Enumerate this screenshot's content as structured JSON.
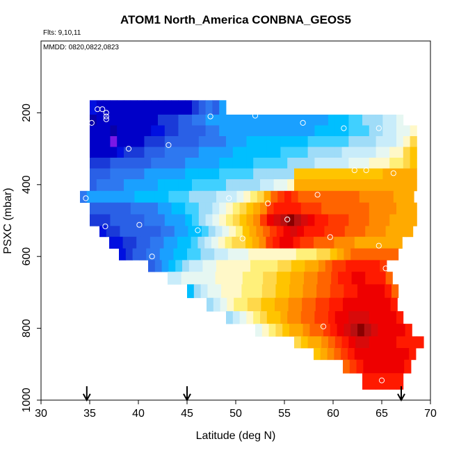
{
  "chart_data": {
    "type": "heatmap",
    "title": "ATOM1 North_America CONBNA_GEOS5",
    "notes": [
      "Flts: 9,10,11",
      "MMDD: 0820,0822,0823"
    ],
    "xlabel": "Latitude (deg N)",
    "ylabel": "PSXC (mbar)",
    "xlim": [
      30,
      70
    ],
    "ylim": [
      1000,
      0
    ],
    "y_inverted": true,
    "xticks": [
      "30",
      "35",
      "40",
      "45",
      "50",
      "55",
      "60",
      "65",
      "70"
    ],
    "yticks": [
      "200",
      "400",
      "600",
      "800",
      "1000"
    ],
    "grid": false,
    "legend": "none",
    "colors": {
      "axis": "#000000",
      "text": "#000000",
      "marker_stroke": "#ffffff",
      "palette": [
        "#7a18e6",
        "#0800a8",
        "#0000c8",
        "#0010e0",
        "#1a3ad8",
        "#2a60e6",
        "#2e78f0",
        "#1aa0ff",
        "#00bfff",
        "#40d0ff",
        "#9fdcf8",
        "#c8ecfa",
        "#e6f7f2",
        "#fff8c8",
        "#fff07a",
        "#ffd84a",
        "#ffc400",
        "#ffaa00",
        "#ff8a00",
        "#ff6400",
        "#ff3a00",
        "#ff1a00",
        "#ee0000",
        "#d80a0a",
        "#b80f10",
        "#8a0000"
      ]
    },
    "rows": [
      {
        "p": 190,
        "x0": 35,
        "vals": [
          3,
          2,
          2,
          2,
          2,
          2,
          2,
          2,
          2,
          2,
          2,
          2,
          2,
          2,
          2,
          4,
          5,
          6,
          5,
          7
        ]
      },
      {
        "p": 220,
        "x0": 35,
        "vals": [
          1,
          2,
          2,
          2,
          2,
          2,
          2,
          2,
          2,
          2,
          4,
          4,
          4,
          5,
          5,
          6,
          6,
          7,
          7,
          7,
          7,
          7,
          7,
          7,
          7,
          7,
          7,
          7,
          7,
          7,
          7,
          7,
          7,
          7,
          7,
          8,
          8,
          8,
          9,
          9,
          10,
          10,
          10,
          11,
          11,
          12
        ]
      },
      {
        "p": 250,
        "x0": 35,
        "vals": [
          2,
          2,
          2,
          1,
          2,
          2,
          2,
          2,
          2,
          3,
          3,
          4,
          4,
          5,
          5,
          5,
          5,
          6,
          6,
          7,
          7,
          7,
          7,
          7,
          7,
          7,
          7,
          7,
          7,
          7,
          7,
          7,
          7,
          8,
          8,
          8,
          8,
          8,
          9,
          9,
          9,
          10,
          10,
          11,
          11,
          12,
          12,
          13
        ]
      },
      {
        "p": 280,
        "x0": 35,
        "vals": [
          2,
          2,
          2,
          0,
          2,
          2,
          2,
          2,
          4,
          4,
          4,
          5,
          5,
          5,
          5,
          5,
          6,
          6,
          6,
          6,
          7,
          7,
          7,
          8,
          8,
          8,
          8,
          8,
          8,
          8,
          8,
          8,
          9,
          9,
          9,
          9,
          9,
          9,
          10,
          10,
          10,
          10,
          11,
          11,
          11,
          12,
          13,
          15
        ]
      },
      {
        "p": 310,
        "x0": 35,
        "vals": [
          2,
          2,
          2,
          2,
          3,
          4,
          4,
          4,
          5,
          5,
          5,
          6,
          6,
          6,
          6,
          6,
          7,
          7,
          7,
          7,
          7,
          8,
          8,
          8,
          8,
          8,
          8,
          8,
          9,
          9,
          9,
          9,
          10,
          10,
          10,
          10,
          10,
          11,
          11,
          11,
          11,
          11,
          12,
          12,
          13,
          13,
          15,
          16
        ]
      },
      {
        "p": 340,
        "x0": 35,
        "vals": [
          4,
          4,
          4,
          5,
          5,
          5,
          5,
          5,
          5,
          6,
          6,
          6,
          6,
          6,
          7,
          7,
          7,
          7,
          7,
          8,
          8,
          8,
          8,
          8,
          9,
          9,
          9,
          9,
          9,
          10,
          10,
          10,
          10,
          11,
          11,
          11,
          11,
          11,
          12,
          12,
          12,
          13,
          13,
          13,
          14,
          14,
          15,
          16
        ]
      },
      {
        "p": 370,
        "x0": 35,
        "vals": [
          5,
          5,
          5,
          6,
          6,
          6,
          6,
          6,
          7,
          7,
          7,
          7,
          7,
          7,
          8,
          8,
          8,
          8,
          8,
          9,
          9,
          9,
          9,
          9,
          10,
          10,
          10,
          10,
          10,
          10,
          16,
          16,
          16,
          16,
          16,
          16,
          16,
          16,
          16,
          16,
          16,
          16,
          16,
          17,
          17,
          17,
          17,
          17
        ]
      },
      {
        "p": 400,
        "x0": 35,
        "vals": [
          5,
          6,
          6,
          6,
          6,
          7,
          7,
          7,
          7,
          7,
          8,
          8,
          8,
          8,
          8,
          9,
          9,
          9,
          9,
          9,
          10,
          10,
          10,
          10,
          10,
          11,
          11,
          12,
          12,
          13,
          17,
          17,
          17,
          17,
          17,
          17,
          17,
          17,
          17,
          17,
          17,
          17,
          17,
          17,
          17,
          17,
          17,
          17
        ]
      },
      {
        "p": 435,
        "x0": 34,
        "vals": [
          6,
          7,
          7,
          7,
          7,
          7,
          7,
          7,
          8,
          8,
          8,
          8,
          8,
          9,
          9,
          9,
          10,
          10,
          10,
          10,
          11,
          11,
          11,
          12,
          13,
          14,
          15,
          17,
          19,
          20,
          21,
          20,
          19,
          19,
          19,
          19,
          19,
          19,
          19,
          19,
          19,
          18,
          18,
          18,
          18,
          18,
          17,
          17,
          17
        ]
      },
      {
        "p": 465,
        "x0": 35,
        "vals": [
          5,
          5,
          5,
          5,
          5,
          5,
          6,
          6,
          6,
          6,
          7,
          7,
          8,
          8,
          9,
          9,
          10,
          10,
          11,
          12,
          13,
          14,
          15,
          16,
          17,
          18,
          20,
          21,
          21,
          21,
          21,
          20,
          20,
          20,
          19,
          19,
          19,
          19,
          19,
          19,
          19,
          18,
          18,
          18,
          18,
          17,
          17,
          17
        ]
      },
      {
        "p": 500,
        "x0": 35,
        "vals": [
          4,
          4,
          4,
          5,
          5,
          5,
          5,
          5,
          6,
          6,
          6,
          7,
          7,
          7,
          8,
          9,
          10,
          11,
          12,
          13,
          14,
          15,
          16,
          17,
          18,
          20,
          22,
          23,
          24,
          25,
          24,
          23,
          22,
          21,
          21,
          20,
          20,
          20,
          19,
          19,
          19,
          18,
          18,
          18,
          17,
          17,
          17,
          17
        ]
      },
      {
        "p": 530,
        "x0": 36,
        "vals": [
          3,
          4,
          4,
          5,
          5,
          5,
          5,
          5,
          5,
          6,
          6,
          7,
          7,
          8,
          8,
          9,
          10,
          11,
          12,
          13,
          14,
          16,
          17,
          18,
          19,
          20,
          21,
          22,
          23,
          22,
          21,
          21,
          21,
          20,
          20,
          20,
          19,
          19,
          19,
          18,
          18,
          18,
          17,
          17,
          17,
          17
        ]
      },
      {
        "p": 560,
        "x0": 37,
        "vals": [
          3,
          3,
          4,
          4,
          5,
          5,
          6,
          6,
          7,
          7,
          8,
          8,
          9,
          10,
          11,
          12,
          13,
          14,
          15,
          15,
          16,
          17,
          18,
          20,
          21,
          22,
          22,
          21,
          20,
          20,
          19,
          19,
          19,
          18,
          18,
          18,
          17,
          17,
          17,
          17,
          17,
          17,
          17
        ]
      },
      {
        "p": 595,
        "x0": 38,
        "vals": [
          3,
          4,
          5,
          5,
          6,
          6,
          7,
          7,
          8,
          8,
          9,
          9,
          10,
          10,
          11,
          11,
          12,
          12,
          12,
          13,
          13,
          13,
          13,
          13,
          13,
          13,
          14,
          14,
          14,
          15,
          15,
          16,
          17,
          18,
          19,
          19,
          19,
          19,
          19,
          19,
          19
        ]
      },
      {
        "p": 625,
        "x0": 41,
        "vals": [
          5,
          6,
          7,
          8,
          9,
          10,
          11,
          11,
          12,
          12,
          13,
          13,
          13,
          13,
          13,
          14,
          14,
          14,
          14,
          15,
          15,
          16,
          16,
          17,
          17,
          18,
          19,
          20,
          20,
          21,
          21,
          21,
          21,
          21,
          20
        ]
      },
      {
        "p": 660,
        "x0": 43,
        "vals": [
          11,
          11,
          12,
          12,
          12,
          12,
          12,
          13,
          13,
          13,
          13,
          14,
          14,
          14,
          15,
          15,
          16,
          16,
          17,
          17,
          18,
          18,
          19,
          19,
          20,
          21,
          21,
          22,
          22,
          21,
          21,
          21,
          19
        ]
      },
      {
        "p": 695,
        "x0": 45,
        "vals": [
          8,
          10,
          11,
          12,
          12,
          13,
          13,
          13,
          14,
          14,
          14,
          15,
          15,
          16,
          16,
          17,
          17,
          18,
          18,
          19,
          19,
          20,
          20,
          21,
          21,
          22,
          22,
          22,
          22,
          21,
          19
        ]
      },
      {
        "p": 735,
        "x0": 47,
        "vals": [
          10,
          11,
          12,
          13,
          14,
          14,
          15,
          15,
          16,
          16,
          17,
          17,
          18,
          18,
          19,
          19,
          20,
          20,
          21,
          21,
          22,
          22,
          22,
          22,
          22,
          22,
          22,
          21
        ]
      },
      {
        "p": 770,
        "x0": 49,
        "vals": [
          10,
          11,
          12,
          13,
          14,
          15,
          16,
          16,
          17,
          18,
          18,
          19,
          19,
          20,
          20,
          21,
          22,
          22,
          23,
          23,
          23,
          22,
          22,
          22,
          22,
          21
        ]
      },
      {
        "p": 805,
        "x0": 52,
        "vals": [
          12,
          13,
          14,
          15,
          16,
          17,
          17,
          18,
          19,
          19,
          20,
          21,
          22,
          23,
          24,
          25,
          24,
          23,
          22,
          22,
          22,
          22,
          21
        ]
      },
      {
        "p": 840,
        "x0": 56,
        "vals": [
          15,
          16,
          17,
          17,
          18,
          19,
          20,
          21,
          22,
          23,
          23,
          22,
          22,
          22,
          22,
          21,
          21,
          21,
          21
        ]
      },
      {
        "p": 870,
        "x0": 58,
        "vals": [
          16,
          17,
          18,
          19,
          20,
          21,
          22,
          22,
          22,
          22,
          22,
          22,
          22,
          22,
          21
        ]
      },
      {
        "p": 905,
        "x0": 61,
        "vals": [
          19,
          20,
          21,
          22,
          22,
          22,
          22,
          22,
          22,
          21
        ]
      },
      {
        "p": 945,
        "x0": 63,
        "vals": [
          21,
          21,
          21,
          21,
          21,
          21
        ]
      }
    ],
    "points": [
      [
        35.8,
        190
      ],
      [
        36.3,
        190
      ],
      [
        36.7,
        200
      ],
      [
        36.7,
        210
      ],
      [
        36.7,
        218
      ],
      [
        35.2,
        228
      ],
      [
        39,
        300
      ],
      [
        43.1,
        290
      ],
      [
        47.4,
        210
      ],
      [
        52,
        208
      ],
      [
        56.9,
        228
      ],
      [
        61.1,
        243
      ],
      [
        64.7,
        243
      ],
      [
        62.2,
        360
      ],
      [
        63.4,
        360
      ],
      [
        66.2,
        368
      ],
      [
        34.6,
        438
      ],
      [
        49.3,
        438
      ],
      [
        53.3,
        452
      ],
      [
        58.4,
        428
      ],
      [
        36.6,
        516
      ],
      [
        40.1,
        512
      ],
      [
        46.1,
        527
      ],
      [
        55.3,
        497
      ],
      [
        50.7,
        550
      ],
      [
        59.7,
        546
      ],
      [
        64.7,
        570
      ],
      [
        37.7,
        605
      ],
      [
        41.4,
        600
      ],
      [
        65.4,
        633
      ],
      [
        59,
        795
      ],
      [
        65,
        945
      ]
    ],
    "arrows_x": [
      34.7,
      45,
      67
    ]
  }
}
